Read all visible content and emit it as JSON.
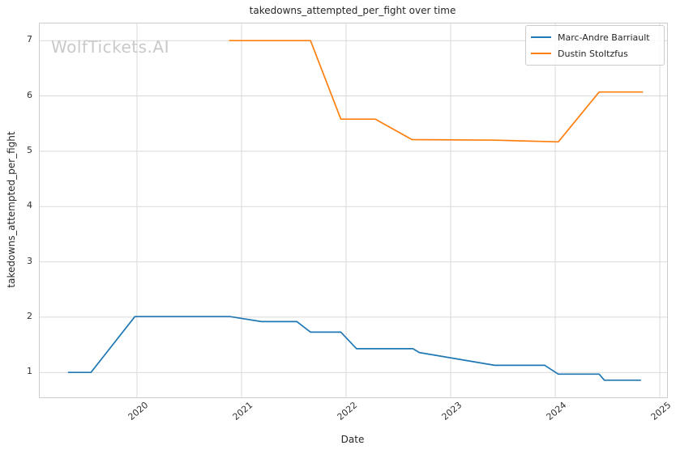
{
  "watermark": "WolfTickets.AI",
  "chart_data": {
    "type": "line",
    "title": "takedowns_attempted_per_fight over time",
    "xlabel": "Date",
    "ylabel": "takedowns_attempted_per_fight",
    "xlim": [
      2019.07,
      2025.07
    ],
    "ylim": [
      0.55,
      7.31
    ],
    "x_ticks": [
      2020,
      2021,
      2022,
      2023,
      2024,
      2025
    ],
    "y_ticks": [
      1,
      2,
      3,
      4,
      5,
      6,
      7
    ],
    "grid": true,
    "grid_color": "#d9d9d9",
    "spine_color": "#cccccc",
    "legend_position": "upper right",
    "series": [
      {
        "name": "Marc-Andre Barriault",
        "color": "#1f77b4",
        "points": [
          [
            2019.34,
            1.0
          ],
          [
            2019.56,
            1.0
          ],
          [
            2019.98,
            2.01
          ],
          [
            2020.89,
            2.01
          ],
          [
            2021.19,
            1.92
          ],
          [
            2021.53,
            1.92
          ],
          [
            2021.66,
            1.73
          ],
          [
            2021.95,
            1.73
          ],
          [
            2022.1,
            1.43
          ],
          [
            2022.64,
            1.43
          ],
          [
            2022.7,
            1.36
          ],
          [
            2023.42,
            1.13
          ],
          [
            2023.9,
            1.13
          ],
          [
            2024.03,
            0.97
          ],
          [
            2024.42,
            0.97
          ],
          [
            2024.47,
            0.86
          ],
          [
            2024.82,
            0.86
          ]
        ]
      },
      {
        "name": "Dustin Stoltzfus",
        "color": "#ff7f0e",
        "points": [
          [
            2020.88,
            7.0
          ],
          [
            2021.66,
            7.0
          ],
          [
            2021.95,
            5.58
          ],
          [
            2022.28,
            5.58
          ],
          [
            2022.63,
            5.21
          ],
          [
            2023.43,
            5.2
          ],
          [
            2024.03,
            5.17
          ],
          [
            2024.42,
            6.07
          ],
          [
            2024.84,
            6.07
          ]
        ]
      }
    ]
  }
}
